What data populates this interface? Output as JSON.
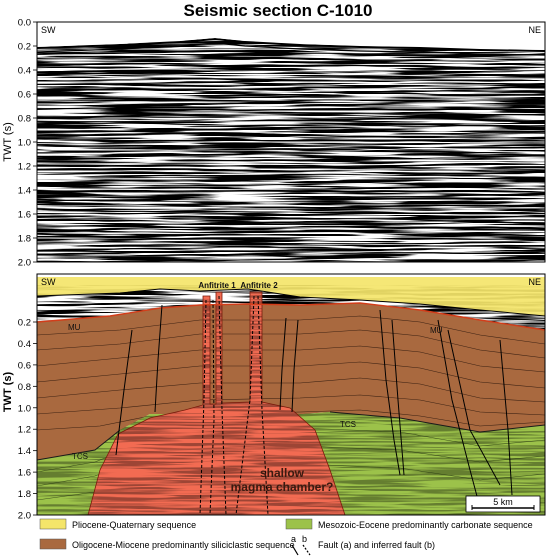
{
  "title": "Seismic section C-1010",
  "top_panel": {
    "corner_left": "SW",
    "corner_right": "NE",
    "y_axis_label": "TWT (s)",
    "y_ticks": [
      "0.0",
      "0.2",
      "0.4",
      "0.6",
      "0.8",
      "1.0",
      "1.2",
      "1.4",
      "1.6",
      "1.8",
      "2.0"
    ]
  },
  "bottom_panel": {
    "corner_left": "SW",
    "corner_right": "NE",
    "y_axis_label": "TWT (s)",
    "y_ticks": [
      "0.2",
      "0.4",
      "0.6",
      "0.8",
      "1.0",
      "1.2",
      "1.4",
      "1.6",
      "1.8",
      "2.0"
    ],
    "well_labels": [
      "Anfitrite 1",
      "Anfitrite 2"
    ],
    "horizon_labels": [
      "MU",
      "MU",
      "TCS",
      "TCS"
    ],
    "chamber_label_line1": "shallow",
    "chamber_label_line2": "magma chamber?",
    "scale_bar_label": "5 km"
  },
  "legend": {
    "items": [
      {
        "label": "Pliocene-Quaternary sequence",
        "color": "#f4e56a"
      },
      {
        "label": "Oligocene-Miocene predominantly siliciclastic sequence",
        "color": "#a9693f"
      },
      {
        "label": "Mesozoic-Eocene predominantly carbonate sequence",
        "color": "#9cc24a"
      }
    ],
    "fault_letters": [
      "a",
      "b"
    ],
    "fault_label": "Fault (a) and inferred fault (b)"
  },
  "colors": {
    "pliocene": "#f4e56a",
    "oligocene": "#a9693f",
    "mesozoic": "#9cc24a",
    "magma": "#f26b52"
  }
}
